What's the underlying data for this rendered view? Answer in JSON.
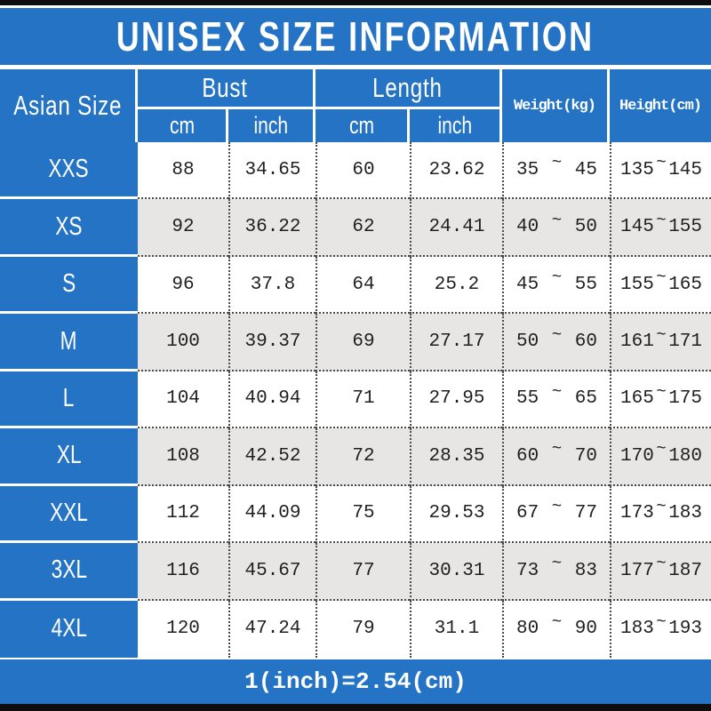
{
  "title": "UNISEX SIZE INFORMATION",
  "footer": "1(inch)=2.54(cm)",
  "colors": {
    "blue": "#2473c5",
    "bar_black": "#0d0d0d",
    "stripe_gray": "#e8e6e4",
    "text_dark": "#1f1f1f",
    "dotted_border": "#4a4a4a",
    "white": "#ffffff"
  },
  "table": {
    "tilde": "~",
    "size_col_header": "Asian Size",
    "bust_group_label": "Bust",
    "length_group_label": "Length",
    "bust_cm_label": "cm",
    "bust_inch_label": "inch",
    "length_cm_label": "cm",
    "length_inch_label": "inch",
    "weight_header": "Weight(kg)",
    "height_header": "Height(cm)",
    "rows": [
      {
        "size": "XXS",
        "bust_cm": "88",
        "bust_inch": "34.65",
        "length_cm": "60",
        "length_inch": "23.62",
        "weight_min": "35",
        "weight_max": "45",
        "height_min": "135",
        "height_max": "145"
      },
      {
        "size": "XS",
        "bust_cm": "92",
        "bust_inch": "36.22",
        "length_cm": "62",
        "length_inch": "24.41",
        "weight_min": "40",
        "weight_max": "50",
        "height_min": "145",
        "height_max": "155"
      },
      {
        "size": "S",
        "bust_cm": "96",
        "bust_inch": "37.8",
        "length_cm": "64",
        "length_inch": "25.2",
        "weight_min": "45",
        "weight_max": "55",
        "height_min": "155",
        "height_max": "165"
      },
      {
        "size": "M",
        "bust_cm": "100",
        "bust_inch": "39.37",
        "length_cm": "69",
        "length_inch": "27.17",
        "weight_min": "50",
        "weight_max": "60",
        "height_min": "161",
        "height_max": "171"
      },
      {
        "size": "L",
        "bust_cm": "104",
        "bust_inch": "40.94",
        "length_cm": "71",
        "length_inch": "27.95",
        "weight_min": "55",
        "weight_max": "65",
        "height_min": "165",
        "height_max": "175"
      },
      {
        "size": "XL",
        "bust_cm": "108",
        "bust_inch": "42.52",
        "length_cm": "72",
        "length_inch": "28.35",
        "weight_min": "60",
        "weight_max": "70",
        "height_min": "170",
        "height_max": "180"
      },
      {
        "size": "XXL",
        "bust_cm": "112",
        "bust_inch": "44.09",
        "length_cm": "75",
        "length_inch": "29.53",
        "weight_min": "67",
        "weight_max": "77",
        "height_min": "173",
        "height_max": "183"
      },
      {
        "size": "3XL",
        "bust_cm": "116",
        "bust_inch": "45.67",
        "length_cm": "77",
        "length_inch": "30.31",
        "weight_min": "73",
        "weight_max": "83",
        "height_min": "177",
        "height_max": "187"
      },
      {
        "size": "4XL",
        "bust_cm": "120",
        "bust_inch": "47.24",
        "length_cm": "79",
        "length_inch": "31.1",
        "weight_min": "80",
        "weight_max": "90",
        "height_min": "183",
        "height_max": "193"
      }
    ]
  },
  "chart_data": {
    "type": "table",
    "title": "UNISEX SIZE INFORMATION",
    "columns": [
      "Asian Size",
      "Bust cm",
      "Bust inch",
      "Length cm",
      "Length inch",
      "Weight(kg)",
      "Height(cm)"
    ],
    "rows": [
      [
        "XXS",
        88,
        34.65,
        60,
        23.62,
        "35~45",
        "135~145"
      ],
      [
        "XS",
        92,
        36.22,
        62,
        24.41,
        "40~50",
        "145~155"
      ],
      [
        "S",
        96,
        37.8,
        64,
        25.2,
        "45~55",
        "155~165"
      ],
      [
        "M",
        100,
        39.37,
        69,
        27.17,
        "50~60",
        "161~171"
      ],
      [
        "L",
        104,
        40.94,
        71,
        27.95,
        "55~65",
        "165~175"
      ],
      [
        "XL",
        108,
        42.52,
        72,
        28.35,
        "60~70",
        "170~180"
      ],
      [
        "XXL",
        112,
        44.09,
        75,
        29.53,
        "67~77",
        "173~183"
      ],
      [
        "3XL",
        116,
        45.67,
        77,
        30.31,
        "73~83",
        "177~187"
      ],
      [
        "4XL",
        120,
        47.24,
        79,
        31.1,
        "80~90",
        "183~193"
      ]
    ],
    "footnote": "1(inch)=2.54(cm)",
    "layout": {
      "stripes": "alternating white/gray rows",
      "header_color": "blue",
      "grid": "dotted"
    }
  }
}
